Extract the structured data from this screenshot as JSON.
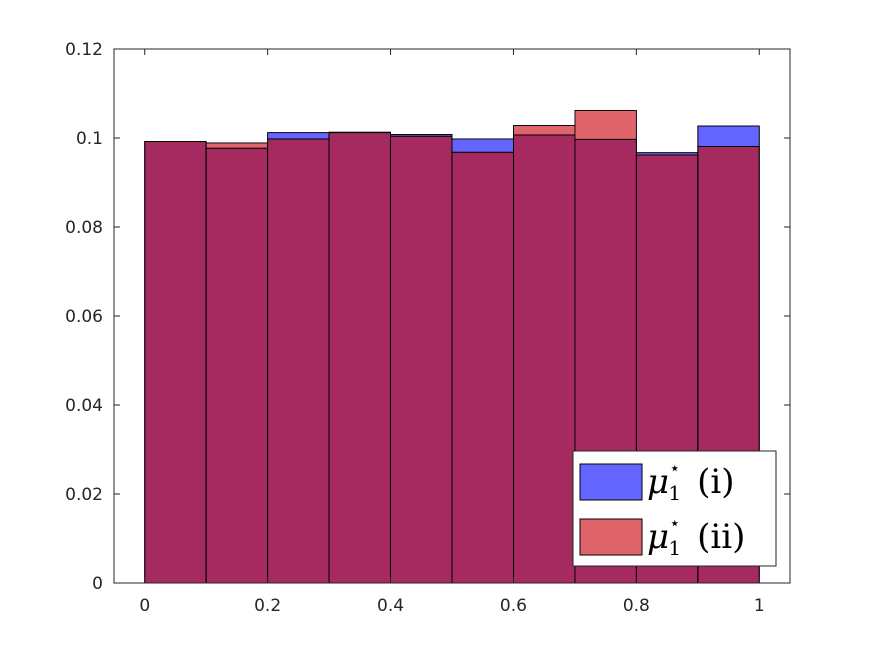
{
  "chart_data": {
    "type": "bar",
    "subtype": "overlaid-histogram",
    "bin_edges": [
      0,
      0.1,
      0.2,
      0.3,
      0.4,
      0.5,
      0.6,
      0.7,
      0.8,
      0.9,
      1.0
    ],
    "series": [
      {
        "name": "μ₁⋆ (i)",
        "math": "μ",
        "sub": "1",
        "sup": "⋆",
        "tag": "(i)",
        "color": "#6464ff",
        "values": [
          0.0992,
          0.0977,
          0.1012,
          0.1012,
          0.1008,
          0.0998,
          0.1007,
          0.0997,
          0.0967,
          0.1027
        ]
      },
      {
        "name": "μ₁⋆ (ii)",
        "math": "μ",
        "sub": "1",
        "sup": "⋆",
        "tag": "(ii)",
        "color": "#e0646b",
        "values": [
          0.0992,
          0.0989,
          0.0998,
          0.1013,
          0.1004,
          0.0968,
          0.1028,
          0.1062,
          0.0962,
          0.0981
        ]
      }
    ],
    "overlap_color": "#a52a5f",
    "xlim": [
      -0.05,
      1.05
    ],
    "ylim": [
      0,
      0.12
    ],
    "xticks": [
      "0",
      "0.2",
      "0.4",
      "0.6",
      "0.8",
      "1"
    ],
    "xtick_values": [
      0,
      0.2,
      0.4,
      0.6,
      0.8,
      1.0
    ],
    "yticks": [
      "0",
      "0.02",
      "0.04",
      "0.06",
      "0.08",
      "0.1",
      "0.12"
    ],
    "ytick_values": [
      0,
      0.02,
      0.04,
      0.06,
      0.08,
      0.1,
      0.12
    ],
    "title": "",
    "xlabel": "",
    "ylabel": "",
    "grid": false,
    "legend": "bottom-right"
  }
}
